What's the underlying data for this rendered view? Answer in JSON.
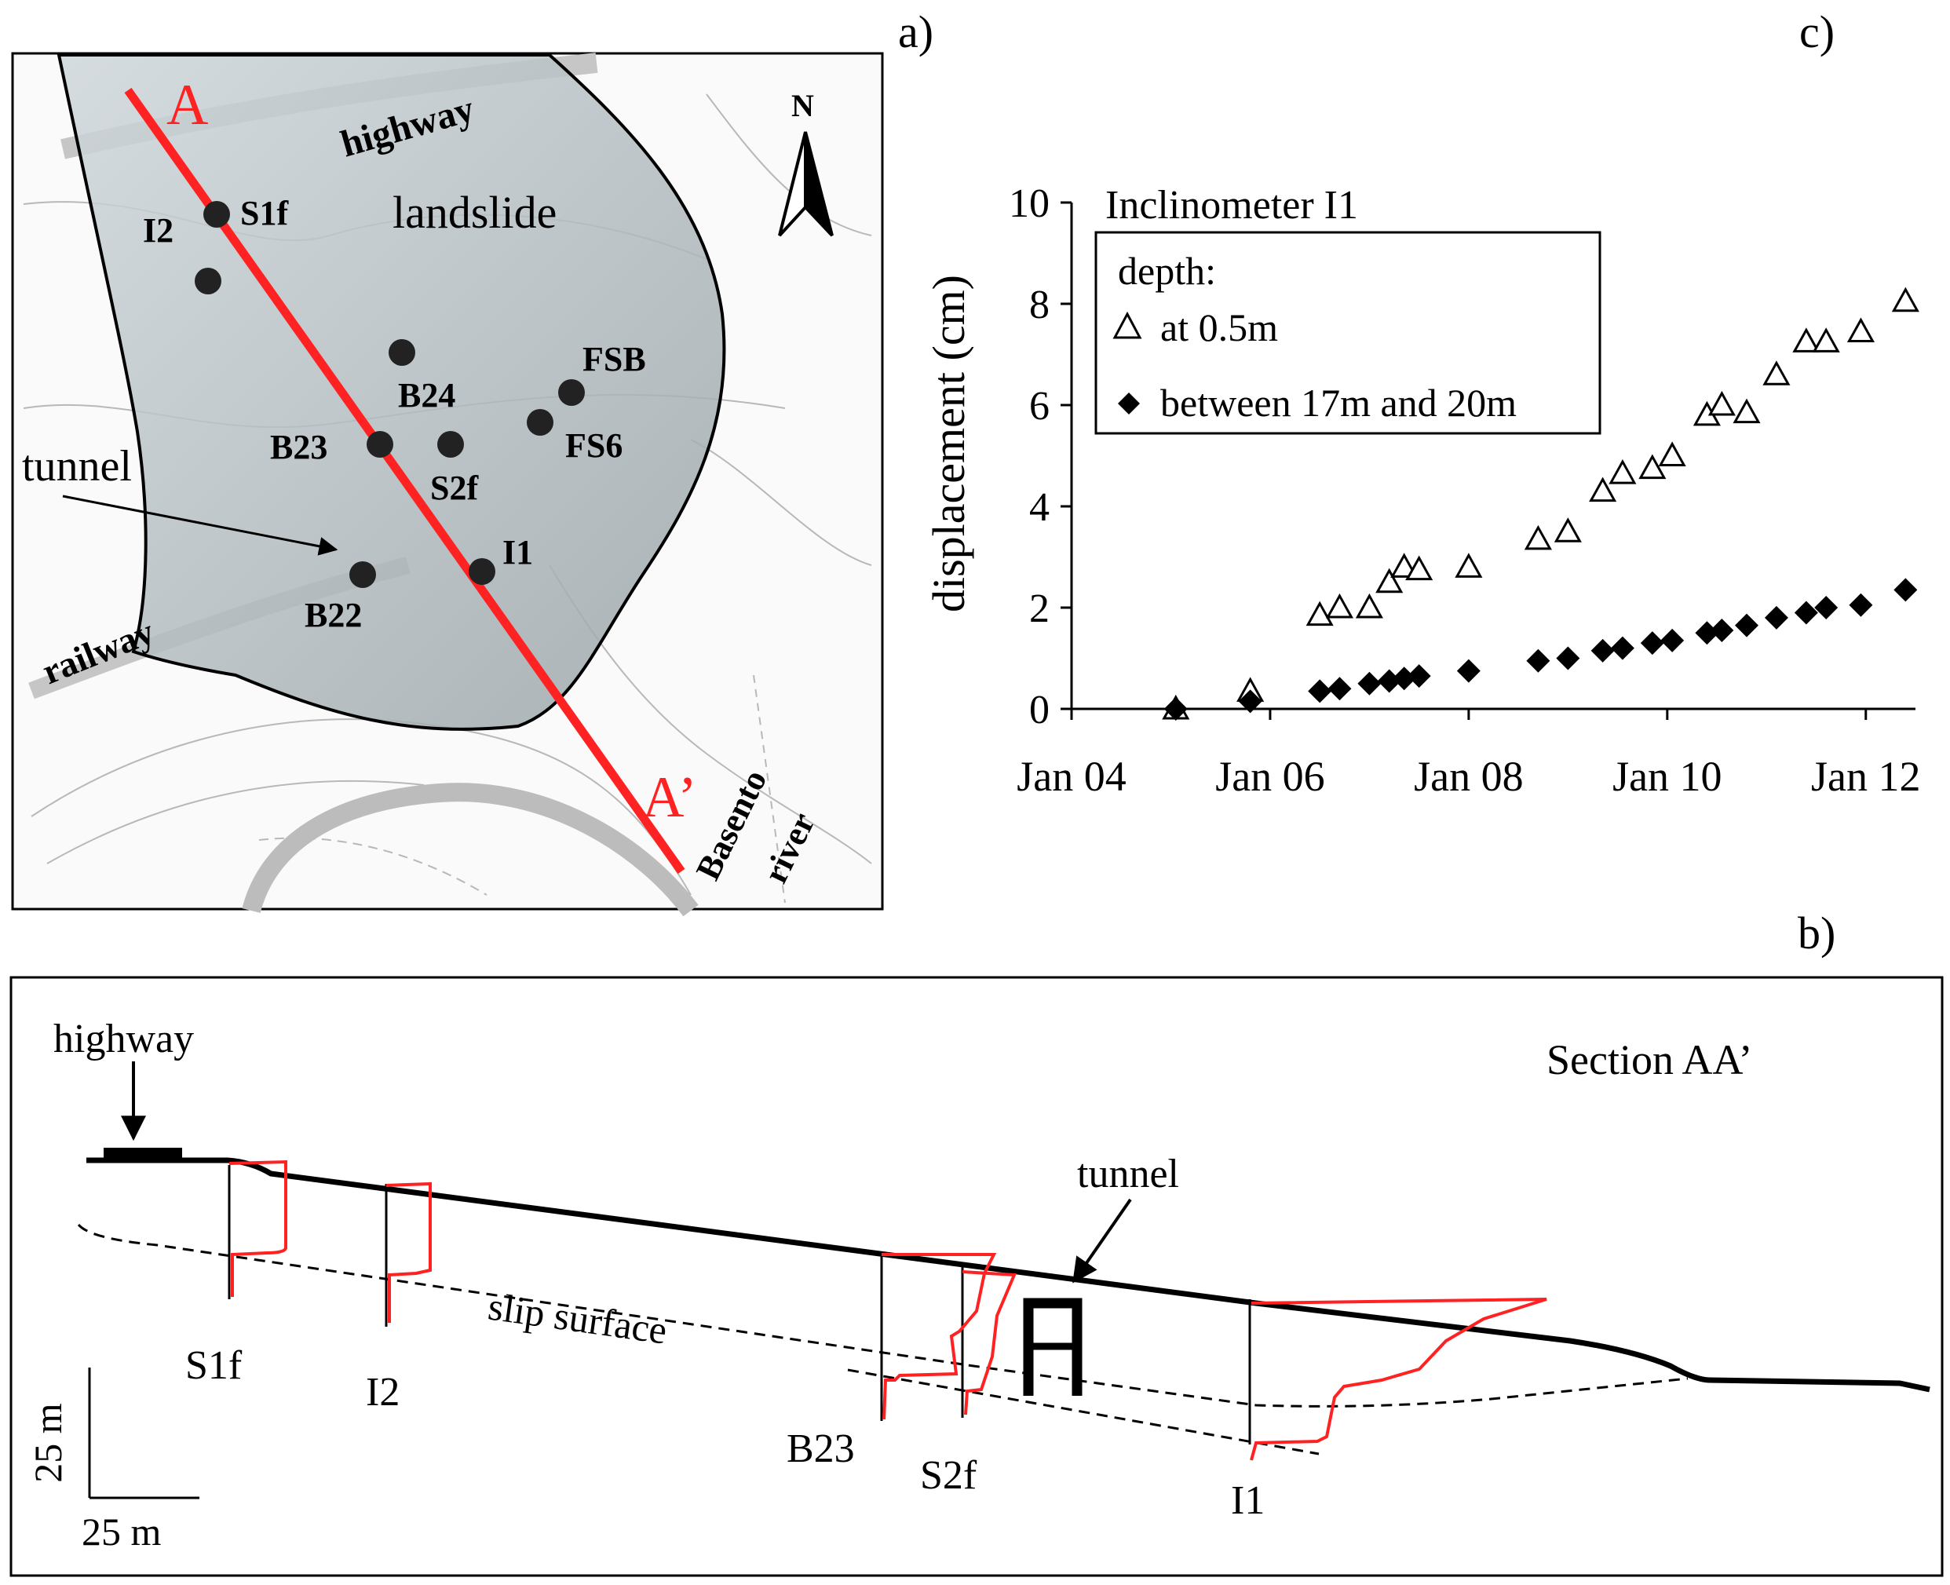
{
  "panel_labels": {
    "a": "a)",
    "b": "b)",
    "c": "c)"
  },
  "map": {
    "section_start": "A",
    "section_end": "A’",
    "north": "N",
    "labels": {
      "highway": "highway",
      "landslide": "landslide",
      "tunnel": "tunnel",
      "railway": "railway",
      "river_1": "Basento",
      "river_2": "river"
    },
    "points": [
      "S1f",
      "I2",
      "B24",
      "FSB",
      "B23",
      "S2f",
      "FS6",
      "I1",
      "B22"
    ]
  },
  "section": {
    "title": "Section AA’",
    "highway": "highway",
    "tunnel": "tunnel",
    "slip_surface": "slip surface",
    "boreholes": [
      "S1f",
      "I2",
      "B23",
      "S2f",
      "I1"
    ],
    "scale_v": "25 m",
    "scale_h": "25 m"
  },
  "chart_data": {
    "type": "scatter",
    "title": "Inclinometer I1",
    "xlabel": "",
    "ylabel": "displacement (cm)",
    "legend_heading": "depth:",
    "ylim": [
      0,
      10
    ],
    "yticks": [
      0,
      2,
      4,
      6,
      8,
      10
    ],
    "xlim": [
      2004.0,
      2012.5
    ],
    "xticks": [
      2004,
      2006,
      2008,
      2010,
      2012
    ],
    "xtick_labels": [
      "Jan 04",
      "Jan 06",
      "Jan 08",
      "Jan 10",
      "Jan 12"
    ],
    "series": [
      {
        "name": "at 0.5m",
        "marker": "triangle",
        "points": [
          [
            2005.05,
            0.0
          ],
          [
            2005.8,
            0.35
          ],
          [
            2006.5,
            1.85
          ],
          [
            2006.7,
            2.0
          ],
          [
            2007.0,
            2.0
          ],
          [
            2007.2,
            2.5
          ],
          [
            2007.35,
            2.8
          ],
          [
            2007.5,
            2.75
          ],
          [
            2008.0,
            2.8
          ],
          [
            2008.7,
            3.35
          ],
          [
            2009.0,
            3.5
          ],
          [
            2009.35,
            4.3
          ],
          [
            2009.55,
            4.65
          ],
          [
            2009.85,
            4.75
          ],
          [
            2010.05,
            5.0
          ],
          [
            2010.4,
            5.8
          ],
          [
            2010.55,
            6.0
          ],
          [
            2010.8,
            5.85
          ],
          [
            2011.1,
            6.6
          ],
          [
            2011.4,
            7.25
          ],
          [
            2011.6,
            7.25
          ],
          [
            2011.95,
            7.45
          ],
          [
            2012.4,
            8.05
          ]
        ]
      },
      {
        "name": "between 17m and 20m",
        "marker": "diamond",
        "points": [
          [
            2005.05,
            0.0
          ],
          [
            2005.8,
            0.15
          ],
          [
            2006.5,
            0.35
          ],
          [
            2006.7,
            0.4
          ],
          [
            2007.0,
            0.5
          ],
          [
            2007.2,
            0.55
          ],
          [
            2007.35,
            0.6
          ],
          [
            2007.5,
            0.65
          ],
          [
            2008.0,
            0.75
          ],
          [
            2008.7,
            0.95
          ],
          [
            2009.0,
            1.0
          ],
          [
            2009.35,
            1.15
          ],
          [
            2009.55,
            1.2
          ],
          [
            2009.85,
            1.3
          ],
          [
            2010.05,
            1.35
          ],
          [
            2010.4,
            1.5
          ],
          [
            2010.55,
            1.55
          ],
          [
            2010.8,
            1.65
          ],
          [
            2011.1,
            1.8
          ],
          [
            2011.4,
            1.9
          ],
          [
            2011.6,
            2.0
          ],
          [
            2011.95,
            2.05
          ],
          [
            2012.4,
            2.35
          ]
        ]
      }
    ]
  }
}
